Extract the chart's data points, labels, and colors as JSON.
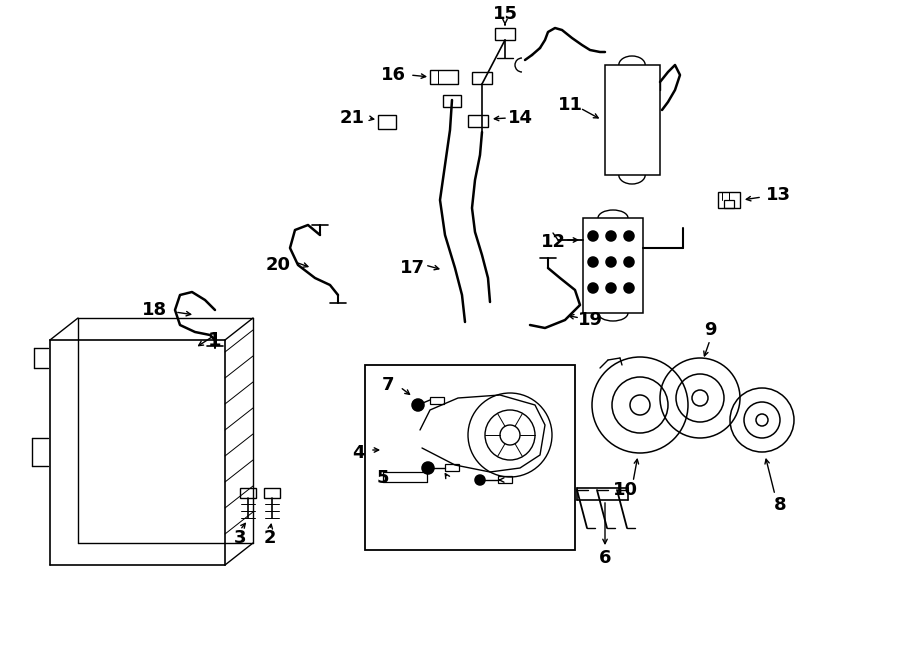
{
  "bg": "#ffffff",
  "lc": "#000000",
  "fw": 9.0,
  "fh": 6.61,
  "dpi": 100,
  "fs": 14
}
